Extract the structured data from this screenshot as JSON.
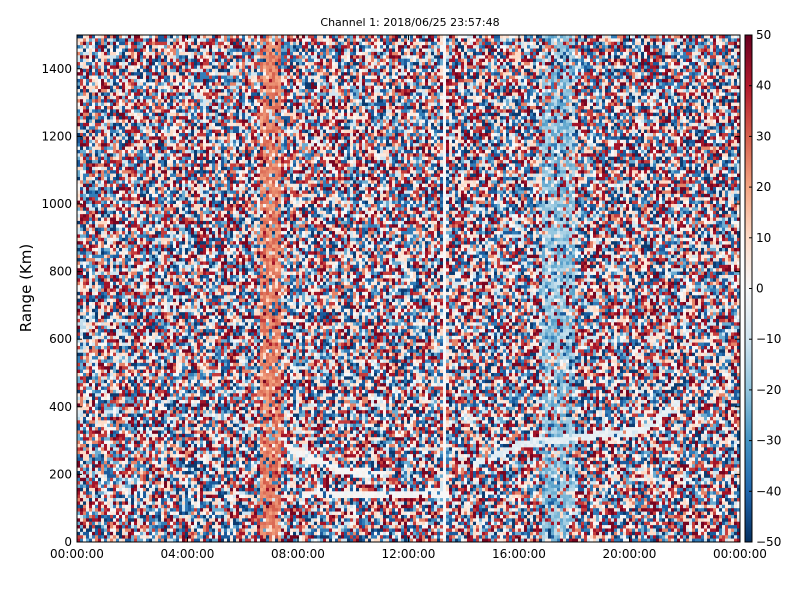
{
  "chart_data": {
    "type": "heatmap",
    "title": "Channel 1: 2018/06/25 23:57:48",
    "xlabel": "",
    "ylabel": "Range (Km)",
    "x_tick_labels": [
      "00:00:00",
      "04:00:00",
      "08:00:00",
      "12:00:00",
      "16:00:00",
      "20:00:00",
      "00:00:00"
    ],
    "x_range_hours": [
      0,
      24
    ],
    "ylim": [
      0,
      1500
    ],
    "y_ticks": [
      0,
      200,
      400,
      600,
      800,
      1000,
      1200,
      1400
    ],
    "colorbar": {
      "range": [
        -50,
        50
      ],
      "ticks": [
        -50,
        -40,
        -30,
        -20,
        -10,
        0,
        10,
        20,
        30,
        40,
        50
      ],
      "colormap": "RdBu_r",
      "colors": [
        "#053061",
        "#2166ac",
        "#4393c3",
        "#92c5de",
        "#d1e5f0",
        "#f7f7f7",
        "#fddbc7",
        "#f4a582",
        "#d6604d",
        "#b2182b",
        "#67001f"
      ]
    },
    "grid": false,
    "data_gap_hours": 13.3,
    "features": [
      {
        "name": "positive-band",
        "hours": [
          6.6,
          7.4
        ],
        "value": 25
      },
      {
        "name": "negative-band",
        "hours": [
          16.8,
          18.0
        ],
        "value": -20
      },
      {
        "name": "trace-1",
        "points": [
          [
            7.6,
            280
          ],
          [
            9.5,
            210
          ],
          [
            11.2,
            200
          ]
        ],
        "value": 0
      },
      {
        "name": "trace-2",
        "points": [
          [
            8.1,
            140
          ],
          [
            13.3,
            140
          ]
        ],
        "value": 0
      },
      {
        "name": "trace-3",
        "points": [
          [
            14.3,
            225
          ],
          [
            16.2,
            290
          ],
          [
            20.5,
            330
          ],
          [
            21.8,
            415
          ]
        ],
        "value": -5
      }
    ]
  }
}
